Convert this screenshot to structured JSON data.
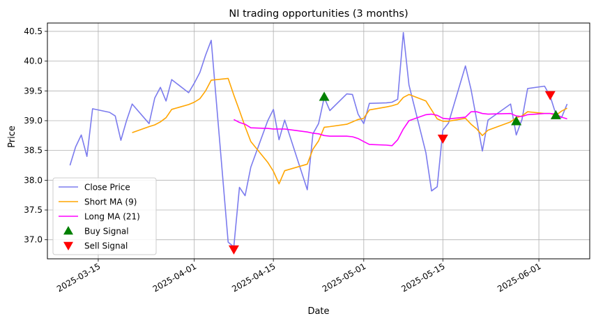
{
  "chart_data": {
    "type": "line",
    "title": "NI trading opportunities (3 months)",
    "xlabel": "Date",
    "ylabel": "Price",
    "xlim": [
      "2025-03-06",
      "2025-06-10"
    ],
    "ylim": [
      36.68,
      40.64
    ],
    "x_ticks": [
      "2025-03-15",
      "2025-04-01",
      "2025-04-15",
      "2025-05-01",
      "2025-05-15",
      "2025-06-01"
    ],
    "y_ticks": [
      "37.0",
      "37.5",
      "38.0",
      "38.5",
      "39.0",
      "39.5",
      "40.0",
      "40.5"
    ],
    "grid": true,
    "legend_position": "lower left",
    "colors": {
      "close": "#7b7bee",
      "short_ma": "#ffa500",
      "long_ma": "#ff00ff",
      "buy": "#008000",
      "sell": "#ff0000",
      "grid": "#b0b0b0"
    },
    "series": [
      {
        "name": "Close Price",
        "points": [
          [
            "2025-03-10",
            38.25
          ],
          [
            "2025-03-11",
            38.56
          ],
          [
            "2025-03-12",
            38.76
          ],
          [
            "2025-03-13",
            38.4
          ],
          [
            "2025-03-14",
            39.2
          ],
          [
            "2025-03-17",
            39.14
          ],
          [
            "2025-03-18",
            39.08
          ],
          [
            "2025-03-19",
            38.67
          ],
          [
            "2025-03-20",
            39.0
          ],
          [
            "2025-03-21",
            39.28
          ],
          [
            "2025-03-24",
            38.95
          ],
          [
            "2025-03-25",
            39.38
          ],
          [
            "2025-03-26",
            39.56
          ],
          [
            "2025-03-27",
            39.33
          ],
          [
            "2025-03-28",
            39.69
          ],
          [
            "2025-03-31",
            39.47
          ],
          [
            "2025-04-01",
            39.63
          ],
          [
            "2025-04-02",
            39.81
          ],
          [
            "2025-04-03",
            40.1
          ],
          [
            "2025-04-04",
            40.35
          ],
          [
            "2025-04-07",
            36.96
          ],
          [
            "2025-04-08",
            36.88
          ],
          [
            "2025-04-09",
            37.88
          ],
          [
            "2025-04-10",
            37.74
          ],
          [
            "2025-04-11",
            38.22
          ],
          [
            "2025-04-14",
            39.0
          ],
          [
            "2025-04-15",
            39.19
          ],
          [
            "2025-04-16",
            38.68
          ],
          [
            "2025-04-17",
            39.01
          ],
          [
            "2025-04-21",
            37.84
          ],
          [
            "2025-04-22",
            38.78
          ],
          [
            "2025-04-23",
            38.95
          ],
          [
            "2025-04-24",
            39.39
          ],
          [
            "2025-04-25",
            39.17
          ],
          [
            "2025-04-28",
            39.45
          ],
          [
            "2025-04-29",
            39.44
          ],
          [
            "2025-04-30",
            39.11
          ],
          [
            "2025-05-01",
            38.95
          ],
          [
            "2025-05-02",
            39.29
          ],
          [
            "2025-05-05",
            39.3
          ],
          [
            "2025-05-06",
            39.31
          ],
          [
            "2025-05-07",
            39.36
          ],
          [
            "2025-05-08",
            40.48
          ],
          [
            "2025-05-09",
            39.6
          ],
          [
            "2025-05-12",
            38.46
          ],
          [
            "2025-05-13",
            37.82
          ],
          [
            "2025-05-14",
            37.89
          ],
          [
            "2025-05-15",
            38.84
          ],
          [
            "2025-05-16",
            38.96
          ],
          [
            "2025-05-19",
            39.92
          ],
          [
            "2025-05-20",
            39.52
          ],
          [
            "2025-05-21",
            39.01
          ],
          [
            "2025-05-22",
            38.49
          ],
          [
            "2025-05-23",
            39.01
          ],
          [
            "2025-05-27",
            39.28
          ],
          [
            "2025-05-28",
            38.76
          ],
          [
            "2025-05-29",
            39.02
          ],
          [
            "2025-05-30",
            39.54
          ],
          [
            "2025-06-02",
            39.58
          ],
          [
            "2025-06-03",
            39.41
          ],
          [
            "2025-06-04",
            39.11
          ],
          [
            "2025-06-05",
            39.05
          ],
          [
            "2025-06-06",
            39.28
          ]
        ]
      },
      {
        "name": "Short MA (9)",
        "points": [
          [
            "2025-03-21",
            38.8
          ],
          [
            "2025-03-24",
            38.9
          ],
          [
            "2025-03-25",
            38.93
          ],
          [
            "2025-03-26",
            38.98
          ],
          [
            "2025-03-27",
            39.05
          ],
          [
            "2025-03-28",
            39.19
          ],
          [
            "2025-03-31",
            39.27
          ],
          [
            "2025-04-01",
            39.31
          ],
          [
            "2025-04-02",
            39.37
          ],
          [
            "2025-04-03",
            39.5
          ],
          [
            "2025-04-04",
            39.68
          ],
          [
            "2025-04-07",
            39.71
          ],
          [
            "2025-04-08",
            39.43
          ],
          [
            "2025-04-09",
            39.17
          ],
          [
            "2025-04-10",
            38.9
          ],
          [
            "2025-04-11",
            38.65
          ],
          [
            "2025-04-14",
            38.3
          ],
          [
            "2025-04-15",
            38.15
          ],
          [
            "2025-04-16",
            37.94
          ],
          [
            "2025-04-17",
            38.16
          ],
          [
            "2025-04-21",
            38.27
          ],
          [
            "2025-04-22",
            38.52
          ],
          [
            "2025-04-23",
            38.66
          ],
          [
            "2025-04-24",
            38.89
          ],
          [
            "2025-04-25",
            38.9
          ],
          [
            "2025-04-28",
            38.94
          ],
          [
            "2025-04-29",
            38.98
          ],
          [
            "2025-04-30",
            39.02
          ],
          [
            "2025-05-01",
            39.04
          ],
          [
            "2025-05-02",
            39.18
          ],
          [
            "2025-05-05",
            39.23
          ],
          [
            "2025-05-06",
            39.25
          ],
          [
            "2025-05-07",
            39.28
          ],
          [
            "2025-05-08",
            39.39
          ],
          [
            "2025-05-09",
            39.44
          ],
          [
            "2025-05-12",
            39.33
          ],
          [
            "2025-05-13",
            39.18
          ],
          [
            "2025-05-14",
            39.03
          ],
          [
            "2025-05-15",
            38.99
          ],
          [
            "2025-05-16",
            38.99
          ],
          [
            "2025-05-19",
            39.04
          ],
          [
            "2025-05-20",
            38.94
          ],
          [
            "2025-05-21",
            38.86
          ],
          [
            "2025-05-22",
            38.75
          ],
          [
            "2025-05-23",
            38.84
          ],
          [
            "2025-05-27",
            38.98
          ],
          [
            "2025-05-28",
            39.05
          ],
          [
            "2025-05-29",
            39.08
          ],
          [
            "2025-05-30",
            39.15
          ],
          [
            "2025-06-02",
            39.12
          ],
          [
            "2025-06-03",
            39.12
          ],
          [
            "2025-06-04",
            39.09
          ],
          [
            "2025-06-05",
            39.16
          ],
          [
            "2025-06-06",
            39.21
          ]
        ]
      },
      {
        "name": "Long MA (21)",
        "points": [
          [
            "2025-04-08",
            39.02
          ],
          [
            "2025-04-09",
            38.97
          ],
          [
            "2025-04-10",
            38.94
          ],
          [
            "2025-04-11",
            38.88
          ],
          [
            "2025-04-14",
            38.87
          ],
          [
            "2025-04-15",
            38.86
          ],
          [
            "2025-04-16",
            38.86
          ],
          [
            "2025-04-17",
            38.86
          ],
          [
            "2025-04-21",
            38.81
          ],
          [
            "2025-04-22",
            38.79
          ],
          [
            "2025-04-23",
            38.78
          ],
          [
            "2025-04-24",
            38.75
          ],
          [
            "2025-04-25",
            38.74
          ],
          [
            "2025-04-28",
            38.74
          ],
          [
            "2025-04-29",
            38.73
          ],
          [
            "2025-04-30",
            38.7
          ],
          [
            "2025-05-01",
            38.65
          ],
          [
            "2025-05-02",
            38.6
          ],
          [
            "2025-05-05",
            38.59
          ],
          [
            "2025-05-06",
            38.58
          ],
          [
            "2025-05-07",
            38.68
          ],
          [
            "2025-05-08",
            38.86
          ],
          [
            "2025-05-09",
            39.0
          ],
          [
            "2025-05-12",
            39.1
          ],
          [
            "2025-05-13",
            39.11
          ],
          [
            "2025-05-14",
            39.09
          ],
          [
            "2025-05-15",
            39.04
          ],
          [
            "2025-05-16",
            39.03
          ],
          [
            "2025-05-19",
            39.06
          ],
          [
            "2025-05-20",
            39.15
          ],
          [
            "2025-05-21",
            39.15
          ],
          [
            "2025-05-22",
            39.12
          ],
          [
            "2025-05-23",
            39.11
          ],
          [
            "2025-05-27",
            39.12
          ],
          [
            "2025-05-28",
            39.08
          ],
          [
            "2025-05-29",
            39.07
          ],
          [
            "2025-05-30",
            39.1
          ],
          [
            "2025-06-02",
            39.12
          ],
          [
            "2025-06-03",
            39.12
          ],
          [
            "2025-06-04",
            39.11
          ],
          [
            "2025-06-05",
            39.06
          ],
          [
            "2025-06-06",
            39.03
          ]
        ]
      }
    ],
    "markers": [
      {
        "name": "Buy Signal",
        "shape": "triangle-up",
        "points": [
          [
            "2025-04-24",
            39.4
          ],
          [
            "2025-05-28",
            38.99
          ],
          [
            "2025-06-04",
            39.09
          ]
        ]
      },
      {
        "name": "Sell Signal",
        "shape": "triangle-down",
        "points": [
          [
            "2025-04-08",
            36.84
          ],
          [
            "2025-05-15",
            38.7
          ],
          [
            "2025-06-03",
            39.43
          ]
        ]
      }
    ]
  }
}
